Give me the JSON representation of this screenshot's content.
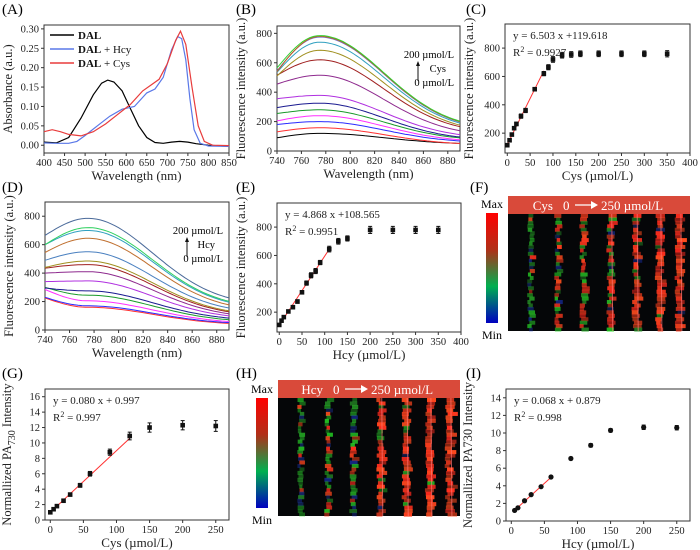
{
  "panels": {
    "A": {
      "label": "(A)"
    },
    "B": {
      "label": "(B)"
    },
    "C": {
      "label": "(C)"
    },
    "D": {
      "label": "(D)"
    },
    "E": {
      "label": "(E)"
    },
    "F": {
      "label": "(F)"
    },
    "G": {
      "label": "(G)"
    },
    "H": {
      "label": "(H)"
    },
    "I": {
      "label": "(I)"
    }
  },
  "chart_data": [
    {
      "id": "A",
      "type": "line",
      "title": "",
      "xlabel": "Wavelength (nm)",
      "ylabel": "Absorbance (a.u.)",
      "xlim": [
        400,
        850
      ],
      "ylim": [
        -0.02,
        0.31
      ],
      "xticks": [
        400,
        450,
        500,
        550,
        600,
        650,
        700,
        750,
        800,
        850
      ],
      "yticks": [
        0.0,
        0.05,
        0.1,
        0.15,
        0.2,
        0.25,
        0.3
      ],
      "ytick_labels": [
        "0.00",
        "0.05",
        "0.10",
        "0.15",
        "0.20",
        "0.25",
        "0.30"
      ],
      "legend": "top-left",
      "series": [
        {
          "name": "DAL",
          "name_bold": "DAL",
          "name_suffix": "",
          "color": "#000000",
          "x": [
            400,
            430,
            460,
            490,
            520,
            540,
            555,
            570,
            590,
            610,
            630,
            650,
            670,
            690,
            710,
            730,
            750,
            770,
            800,
            850
          ],
          "y": [
            0.008,
            0.006,
            0.02,
            0.07,
            0.13,
            0.16,
            0.168,
            0.163,
            0.14,
            0.095,
            0.05,
            0.02,
            0.007,
            0.005,
            0.008,
            0.01,
            0.008,
            0.004,
            0.0,
            -0.003
          ]
        },
        {
          "name": "DAL + Hcy",
          "name_bold": "DAL",
          "name_suffix": " + Hcy",
          "color": "#5a78e8",
          "x": [
            400,
            430,
            460,
            480,
            500,
            530,
            560,
            590,
            620,
            650,
            670,
            690,
            710,
            725,
            735,
            745,
            755,
            765,
            780,
            800,
            850
          ],
          "y": [
            0.006,
            0.005,
            0.005,
            0.01,
            0.025,
            0.05,
            0.075,
            0.093,
            0.1,
            0.135,
            0.145,
            0.175,
            0.245,
            0.28,
            0.275,
            0.22,
            0.12,
            0.04,
            0.005,
            -0.002,
            -0.003
          ]
        },
        {
          "name": "DAL + Cys",
          "name_bold": "DAL",
          "name_suffix": " + Cys",
          "color": "#e83c3c",
          "x": [
            400,
            420,
            440,
            460,
            490,
            520,
            550,
            580,
            610,
            640,
            660,
            680,
            700,
            720,
            732,
            745,
            760,
            775,
            790,
            810,
            850
          ],
          "y": [
            0.035,
            0.04,
            0.035,
            0.028,
            0.024,
            0.035,
            0.055,
            0.08,
            0.105,
            0.14,
            0.155,
            0.17,
            0.21,
            0.27,
            0.294,
            0.26,
            0.15,
            0.05,
            0.01,
            0.0,
            -0.001
          ]
        }
      ]
    },
    {
      "id": "B",
      "type": "line",
      "xlabel": "Wavelength (nm)",
      "ylabel": "Fluorescence intensity (a.u.)",
      "xlim": [
        740,
        890
      ],
      "ylim": [
        0,
        850
      ],
      "xticks": [
        740,
        760,
        780,
        800,
        820,
        840,
        860,
        880
      ],
      "yticks": [
        0,
        200,
        400,
        600,
        800
      ],
      "annotation": {
        "top": "200 µmol/L",
        "analyte": "Cys",
        "bottom": "0 µmol/L"
      },
      "series": [
        {
          "color": "#000000",
          "start": 90,
          "peak": 120,
          "end": 45
        },
        {
          "color": "#ff3030",
          "start": 130,
          "peak": 158,
          "end": 40
        },
        {
          "color": "#2a2aff",
          "start": 180,
          "peak": 200,
          "end": 55
        },
        {
          "color": "#ff30ff",
          "start": 205,
          "peak": 240,
          "end": 60
        },
        {
          "color": "#1a9a2a",
          "start": 255,
          "peak": 280,
          "end": 70
        },
        {
          "color": "#1a1a90",
          "start": 295,
          "peak": 325,
          "end": 72
        },
        {
          "color": "#b030e0",
          "start": 355,
          "peak": 378,
          "end": 85
        },
        {
          "color": "#8e2a8e",
          "start": 455,
          "peak": 515,
          "end": 100
        },
        {
          "color": "#a02020",
          "start": 515,
          "peak": 620,
          "end": 120
        },
        {
          "color": "#a09020",
          "start": 510,
          "peak": 685,
          "end": 125
        },
        {
          "color": "#30a0c0",
          "start": 535,
          "peak": 740,
          "end": 135
        },
        {
          "color": "#7070c8",
          "start": 545,
          "peak": 775,
          "end": 140
        },
        {
          "color": "#c06020",
          "start": 540,
          "peak": 780,
          "end": 142
        },
        {
          "color": "#30d030",
          "start": 565,
          "peak": 785,
          "end": 145
        }
      ]
    },
    {
      "id": "C",
      "type": "scatter",
      "xlabel": "Cys (µmol/L)",
      "ylabel": "Fluorescence intensity (a.u.)",
      "xlim": [
        -5,
        400
      ],
      "ylim": [
        60,
        970
      ],
      "xticks": [
        0,
        50,
        100,
        150,
        200,
        250,
        300,
        350,
        400
      ],
      "yticks": [
        200,
        400,
        600,
        800
      ],
      "equation": "y = 6.503 x +119.618",
      "r2_label": "R",
      "r2_value": " = 0.9927",
      "fit": {
        "slope": 6.503,
        "intercept": 119.618,
        "x_range": [
          0,
          80
        ]
      },
      "x": [
        0,
        5,
        10,
        15,
        20,
        30,
        40,
        60,
        80,
        90,
        100,
        120,
        140,
        160,
        200,
        250,
        300,
        350
      ],
      "y": [
        115,
        150,
        190,
        235,
        265,
        320,
        360,
        510,
        620,
        665,
        720,
        750,
        755,
        760,
        760,
        760,
        760,
        760
      ],
      "err": [
        8,
        10,
        10,
        12,
        12,
        15,
        15,
        12,
        15,
        18,
        20,
        20,
        20,
        20,
        20,
        20,
        20,
        22
      ]
    },
    {
      "id": "D",
      "type": "line",
      "xlabel": "Wavelength (nm)",
      "ylabel": "Fluorescence intensity (a.u.)",
      "xlim": [
        740,
        890
      ],
      "ylim": [
        0,
        900
      ],
      "xticks": [
        740,
        760,
        780,
        800,
        820,
        840,
        860,
        880
      ],
      "yticks": [
        0,
        200,
        400,
        600,
        800
      ],
      "annotation": {
        "top": "200 µmol/L",
        "analyte": "Hcy",
        "bottom": "0 µmol/L"
      },
      "series": [
        {
          "color": "#ff3030",
          "start": 225,
          "peak": 160,
          "end": 35
        },
        {
          "color": "#2a2aff",
          "start": 230,
          "peak": 170,
          "end": 40
        },
        {
          "color": "#ff30ff",
          "start": 285,
          "peak": 205,
          "end": 45
        },
        {
          "color": "#1a9a2a",
          "start": 300,
          "peak": 245,
          "end": 55
        },
        {
          "color": "#1a1a90",
          "start": 295,
          "peak": 275,
          "end": 65
        },
        {
          "color": "#b030e0",
          "start": 340,
          "peak": 345,
          "end": 75
        },
        {
          "color": "#8e2a8e",
          "start": 400,
          "peak": 410,
          "end": 85
        },
        {
          "color": "#a02020",
          "start": 435,
          "peak": 460,
          "end": 95
        },
        {
          "color": "#a09020",
          "start": 440,
          "peak": 485,
          "end": 100
        },
        {
          "color": "#4a80c0",
          "start": 490,
          "peak": 550,
          "end": 115
        },
        {
          "color": "#c07030",
          "start": 545,
          "peak": 645,
          "end": 130
        },
        {
          "color": "#30a0c0",
          "start": 600,
          "peak": 700,
          "end": 145
        },
        {
          "color": "#30d060",
          "start": 600,
          "peak": 720,
          "end": 150
        },
        {
          "color": "#4a6a9a",
          "start": 665,
          "peak": 785,
          "end": 170
        }
      ]
    },
    {
      "id": "E",
      "type": "scatter",
      "xlabel": "Hcy (µmol/L)",
      "ylabel": "Fluorescence intensity (a.u.)",
      "xlim": [
        -5,
        400
      ],
      "ylim": [
        60,
        970
      ],
      "xticks": [
        0,
        50,
        100,
        150,
        200,
        250,
        300,
        350,
        400
      ],
      "yticks": [
        200,
        400,
        600,
        800
      ],
      "equation": "y = 4.868 x +108.565",
      "r2_label": "R",
      "r2_value": " = 0.9951",
      "fit": {
        "slope": 4.868,
        "intercept": 108.565,
        "x_range": [
          0,
          110
        ]
      },
      "x": [
        0,
        5,
        10,
        20,
        30,
        40,
        50,
        60,
        70,
        80,
        90,
        110,
        130,
        150,
        200,
        250,
        300,
        350
      ],
      "y": [
        110,
        140,
        165,
        205,
        235,
        275,
        340,
        405,
        460,
        490,
        550,
        645,
        700,
        720,
        780,
        780,
        780,
        780
      ],
      "err": [
        8,
        10,
        10,
        10,
        12,
        12,
        12,
        15,
        18,
        18,
        15,
        20,
        20,
        18,
        25,
        25,
        25,
        25
      ]
    },
    {
      "id": "G",
      "type": "scatter",
      "xlabel": "Cys (µmol/L)",
      "ylabel_prefix": "Normallized PA",
      "ylabel_sub": "730",
      "ylabel_suffix": " Intensity",
      "xlim": [
        -8,
        270
      ],
      "ylim": [
        0,
        17
      ],
      "xticks": [
        0,
        50,
        100,
        150,
        200,
        250
      ],
      "yticks": [
        0,
        2,
        4,
        6,
        8,
        10,
        12,
        14,
        16
      ],
      "equation": "y = 0.080 x + 0.997",
      "r2_label": "R",
      "r2_value": " = 0.997",
      "fit": {
        "slope": 0.08,
        "intercept": 0.997,
        "x_range": [
          0,
          120
        ]
      },
      "x": [
        0,
        5,
        10,
        20,
        30,
        45,
        60,
        90,
        120,
        150,
        200,
        250
      ],
      "y": [
        1.0,
        1.4,
        1.8,
        2.5,
        3.3,
        4.5,
        6.0,
        8.8,
        10.9,
        12.0,
        12.3,
        12.2
      ],
      "err": [
        0.1,
        0.15,
        0.15,
        0.2,
        0.2,
        0.25,
        0.3,
        0.4,
        0.5,
        0.6,
        0.6,
        0.7
      ]
    },
    {
      "id": "I",
      "type": "scatter",
      "xlabel": "Hcy (µmol/L)",
      "ylabel_prefix": "Normallized PA730 Intensity",
      "ylabel_sub": "",
      "ylabel_suffix": "",
      "xlim": [
        -8,
        270
      ],
      "ylim": [
        0,
        15
      ],
      "xticks": [
        0,
        50,
        100,
        150,
        200,
        250
      ],
      "yticks": [
        0,
        2,
        4,
        6,
        8,
        10,
        12,
        14
      ],
      "equation": "y = 0.068  x + 0.879",
      "r2_label": "R",
      "r2_value": " = 0.998",
      "fit": {
        "slope": 0.068,
        "intercept": 0.879,
        "x_range": [
          5,
          60
        ]
      },
      "x": [
        5,
        10,
        20,
        30,
        45,
        60,
        90,
        120,
        150,
        200,
        250
      ],
      "y": [
        1.2,
        1.5,
        2.3,
        3.0,
        3.9,
        5.0,
        7.1,
        8.6,
        10.3,
        10.65,
        10.6
      ],
      "err": [
        0.1,
        0.1,
        0.1,
        0.1,
        0.1,
        0.1,
        0.15,
        0.2,
        0.2,
        0.25,
        0.25
      ]
    }
  ],
  "images": {
    "F": {
      "banner_analyte": "Cys",
      "banner_start": "0",
      "banner_end": "250 µmol/L",
      "scale_max": "Max",
      "scale_min": "Min"
    },
    "H": {
      "banner_analyte": "Hcy",
      "banner_start": "0",
      "banner_end": "250 µmol/L",
      "scale_max": "Max",
      "scale_min": "Min"
    }
  },
  "colors": {
    "banner": "#d94a3a",
    "fit_line": "#ff3030",
    "colorbar": [
      "#ff0000",
      "#b03018",
      "#00b050",
      "#0000c0"
    ]
  }
}
